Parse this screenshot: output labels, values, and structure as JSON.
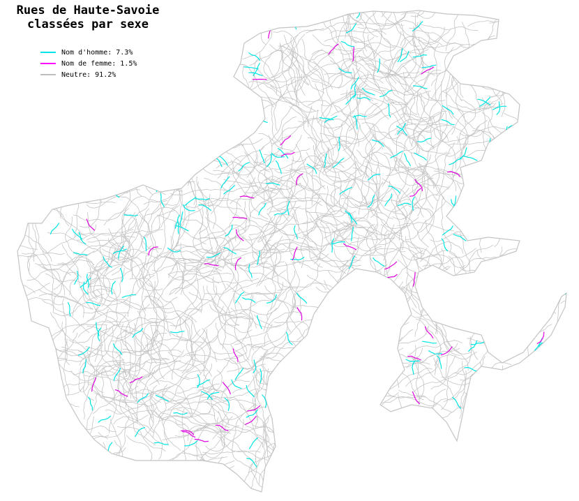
{
  "title": {
    "line1": "Rues de Haute-Savoie",
    "line2": "classées par sexe"
  },
  "legend": [
    {
      "label": "Nom d'homme: 7.3%",
      "color": "#00e5e5"
    },
    {
      "label": "Nom de femme: 1.5%",
      "color": "#ff00ff"
    },
    {
      "label": "Neutre: 91.2%",
      "color": "#bdbdbd"
    }
  ],
  "map_colors": {
    "neutral": "#c4c4c4",
    "male": "#00e5e5",
    "female": "#e000e0"
  }
}
